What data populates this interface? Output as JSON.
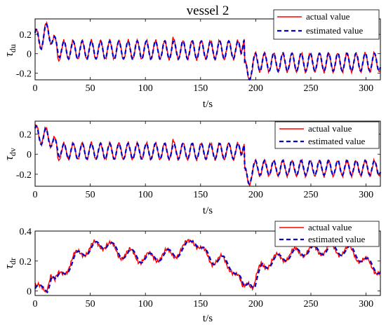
{
  "figure": {
    "title": "vessel 2"
  },
  "colors": {
    "actual": "#ff0000",
    "estimated": "#0000cc",
    "axis": "#000000"
  },
  "chart_data": [
    {
      "type": "line",
      "ylabel_main": "τ",
      "ylabel_sub": "du",
      "xlabel": "t/s",
      "xlim": [
        0,
        313
      ],
      "ylim": [
        -0.27,
        0.36
      ],
      "xticks": [
        0,
        50,
        100,
        150,
        200,
        250,
        300
      ],
      "yticks": [
        -0.2,
        0,
        0.2
      ],
      "grid": false,
      "legend_position": "top-right",
      "series": [
        {
          "name": "actual value",
          "style": "solid"
        },
        {
          "name": "estimated value",
          "style": "dashed"
        }
      ],
      "model": {
        "period": 8.3,
        "switch_t": 190,
        "pre_mean": 0.04,
        "pre_amp": 0.095,
        "post_mean": -0.09,
        "post_amp": 0.095,
        "start_mean": 0.17,
        "peak_t": 12,
        "peak_v": 0.32,
        "pre_switch_v": 0.2,
        "post_switch_v": -0.26
      }
    },
    {
      "type": "line",
      "ylabel_main": "τ",
      "ylabel_sub": "dv",
      "xlabel": "t/s",
      "xlim": [
        0,
        313
      ],
      "ylim": [
        -0.32,
        0.33
      ],
      "xticks": [
        0,
        50,
        100,
        150,
        200,
        250,
        300
      ],
      "yticks": [
        -0.2,
        0,
        0.2
      ],
      "grid": false,
      "legend_position": "top-right",
      "series": [
        {
          "name": "actual value",
          "style": "solid"
        },
        {
          "name": "estimated value",
          "style": "dashed"
        }
      ],
      "model": {
        "period": 8.3,
        "switch_t": 190,
        "pre_mean": 0.03,
        "pre_amp": 0.08,
        "post_mean": -0.14,
        "post_amp": 0.075,
        "start_mean": 0.22,
        "peak_t": 12,
        "peak_v": 0.28,
        "pre_switch_v": 0.14,
        "post_switch_v": -0.3
      }
    },
    {
      "type": "line",
      "ylabel_main": "τ",
      "ylabel_sub": "dr",
      "xlabel": "t/s",
      "xlim": [
        0,
        313
      ],
      "ylim": [
        -0.03,
        0.4
      ],
      "xticks": [
        0,
        50,
        100,
        150,
        200,
        250,
        300
      ],
      "yticks": [
        0,
        0.2,
        0.4
      ],
      "grid": false,
      "legend_position": "top-right",
      "series": [
        {
          "name": "actual value",
          "style": "solid"
        },
        {
          "name": "estimated value",
          "style": "dashed"
        }
      ],
      "model": {
        "period": 16.5,
        "points": [
          [
            0,
            0.03
          ],
          [
            5,
            0.0
          ],
          [
            10,
            0.01
          ],
          [
            14,
            0.13
          ],
          [
            18,
            0.06
          ],
          [
            25,
            0.12
          ],
          [
            35,
            0.22
          ],
          [
            45,
            0.27
          ],
          [
            55,
            0.3
          ],
          [
            65,
            0.32
          ],
          [
            75,
            0.25
          ],
          [
            85,
            0.25
          ],
          [
            95,
            0.22
          ],
          [
            105,
            0.22
          ],
          [
            115,
            0.24
          ],
          [
            125,
            0.25
          ],
          [
            135,
            0.28
          ],
          [
            143,
            0.36
          ],
          [
            150,
            0.27
          ],
          [
            160,
            0.21
          ],
          [
            170,
            0.2
          ],
          [
            178,
            0.16
          ],
          [
            184,
            0.08
          ],
          [
            188,
            0.01
          ],
          [
            193,
            0.09
          ],
          [
            198,
            0.02
          ],
          [
            205,
            0.17
          ],
          [
            215,
            0.2
          ],
          [
            225,
            0.23
          ],
          [
            235,
            0.25
          ],
          [
            245,
            0.27
          ],
          [
            255,
            0.27
          ],
          [
            265,
            0.28
          ],
          [
            275,
            0.27
          ],
          [
            285,
            0.27
          ],
          [
            295,
            0.22
          ],
          [
            305,
            0.16
          ],
          [
            313,
            0.14
          ]
        ],
        "amp": 0.035
      }
    }
  ]
}
